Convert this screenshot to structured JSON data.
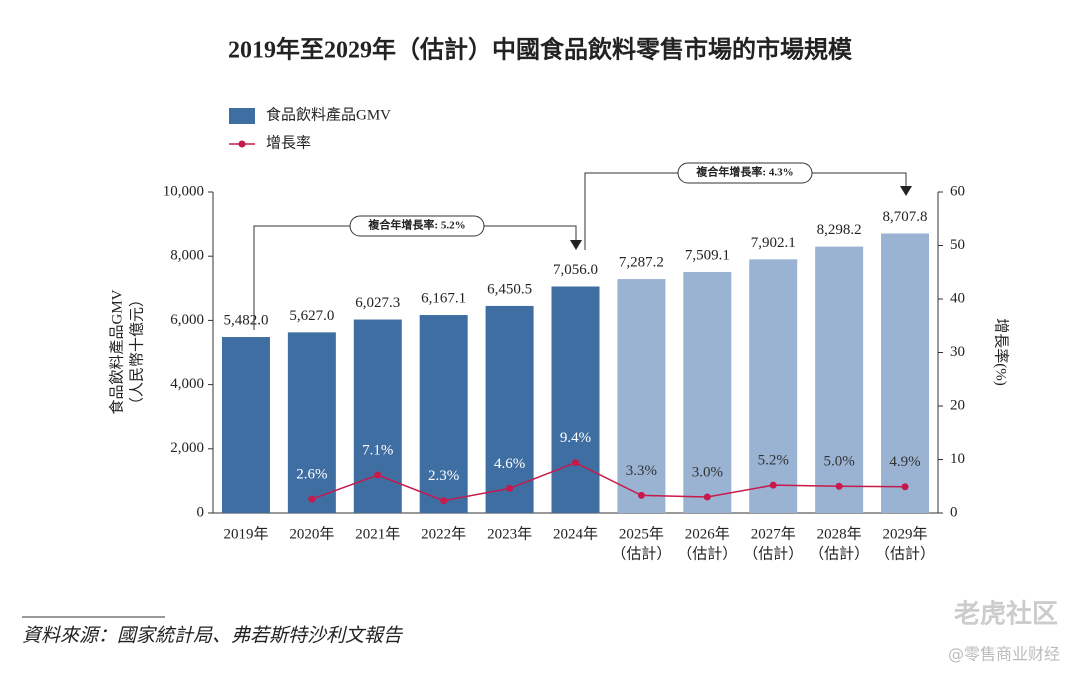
{
  "chart_data": {
    "type": "bar",
    "title": "2019年至2029年（估計）中國食品飲料零售市場的市場規模",
    "categories": [
      [
        "2019年"
      ],
      [
        "2020年"
      ],
      [
        "2021年"
      ],
      [
        "2022年"
      ],
      [
        "2023年"
      ],
      [
        "2024年"
      ],
      [
        "2025年",
        "（估計）"
      ],
      [
        "2026年",
        "（估計）"
      ],
      [
        "2027年",
        "（估計）"
      ],
      [
        "2028年",
        "（估計）"
      ],
      [
        "2029年",
        "（估計）"
      ]
    ],
    "series": [
      {
        "name": "食品飲料產品GMV",
        "type": "bar",
        "color": "#3f6ea3",
        "colors": [
          "#3f6ea3",
          "#3f6ea3",
          "#3f6ea3",
          "#3f6ea3",
          "#3f6ea3",
          "#3f6ea3",
          "#9ab3d3",
          "#9ab3d3",
          "#9ab3d3",
          "#9ab3d3",
          "#9ab3d3"
        ],
        "values": [
          5482.0,
          5627.0,
          6027.3,
          6167.1,
          6450.5,
          7056.0,
          7287.2,
          7509.1,
          7902.1,
          8298.2,
          8707.8
        ],
        "value_labels": [
          "5,482.0",
          "5,627.0",
          "6,027.3",
          "6,167.1",
          "6,450.5",
          "7,056.0",
          "7,287.2",
          "7,509.1",
          "7,902.1",
          "8,298.2",
          "8,707.8"
        ]
      },
      {
        "name": "增長率",
        "type": "line",
        "axis": "y2",
        "color": "#c8194b",
        "values": [
          null,
          2.6,
          7.1,
          2.3,
          4.6,
          9.4,
          3.3,
          3.0,
          5.2,
          5.0,
          4.9
        ],
        "value_labels": [
          null,
          "2.6%",
          "7.1%",
          "2.3%",
          "4.6%",
          "9.4%",
          "3.3%",
          "3.0%",
          "5.2%",
          "5.0%",
          "4.9%"
        ]
      }
    ],
    "ylabel": [
      "食品飲料產品GMV",
      "（人民幣十億元）"
    ],
    "y2label": "增長率(%)",
    "ylim": [
      0,
      10000
    ],
    "yticks": [
      0,
      {
        "value": 2000,
        "label": "2,000"
      },
      {
        "value": 4000,
        "label": "4,000"
      },
      {
        "value": 6000,
        "label": "6,000"
      },
      {
        "value": 8000,
        "label": "8,000"
      },
      {
        "value": 10000,
        "label": "10,000"
      }
    ],
    "y2lim": [
      0,
      60
    ],
    "y2ticks": [
      0,
      10,
      20,
      30,
      40,
      50,
      60
    ],
    "annotations": [
      "複合年增長率: 5.2%",
      "複合年增長率: 4.3%"
    ],
    "source": "資料來源：國家統計局、弗若斯特沙利文報告",
    "watermark": [
      "老虎社区",
      "@零售商业财经"
    ]
  }
}
